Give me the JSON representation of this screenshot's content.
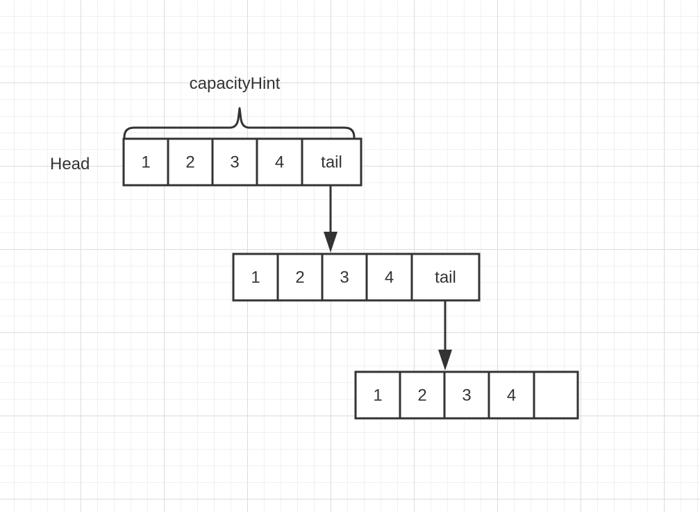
{
  "brace_label": "capacityHint",
  "head_label": "Head",
  "nodes": [
    {
      "cells": [
        "1",
        "2",
        "3",
        "4",
        "tail"
      ]
    },
    {
      "cells": [
        "1",
        "2",
        "3",
        "4",
        "tail"
      ]
    },
    {
      "cells": [
        "1",
        "2",
        "3",
        "4",
        ""
      ]
    }
  ]
}
